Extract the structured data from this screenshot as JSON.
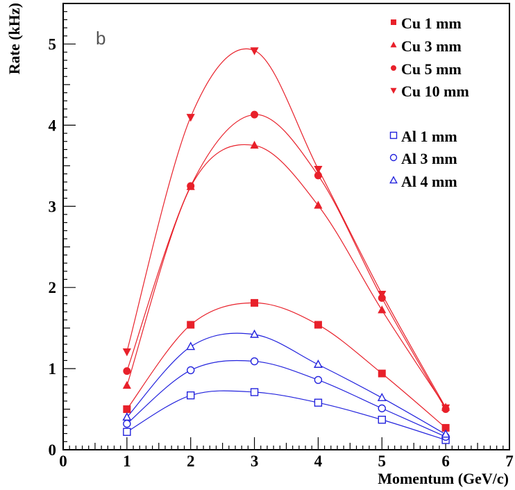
{
  "chart_data": {
    "type": "line",
    "panel_label": "b",
    "xlabel": "Momentum (GeV/c)",
    "ylabel": "Rate (kHz)",
    "xlim": [
      0,
      7
    ],
    "ylim": [
      0,
      5.5
    ],
    "x_ticks": [
      "0",
      "1",
      "2",
      "3",
      "4",
      "5",
      "6",
      "7"
    ],
    "y_ticks": [
      "0",
      "1",
      "2",
      "3",
      "4",
      "5"
    ],
    "x": [
      1,
      2,
      3,
      4,
      5,
      6
    ],
    "grid": false,
    "legend_position": "top-right",
    "series": [
      {
        "name": "Cu 1 mm",
        "marker": "filled-square",
        "color": "#e8202a",
        "values": [
          0.5,
          1.54,
          1.81,
          1.54,
          0.94,
          0.27
        ]
      },
      {
        "name": "Cu 3 mm",
        "marker": "filled-triangle-up",
        "color": "#e8202a",
        "values": [
          0.79,
          3.24,
          3.75,
          3.01,
          1.72,
          0.52
        ]
      },
      {
        "name": "Cu 5 mm",
        "marker": "filled-circle",
        "color": "#e8202a",
        "values": [
          0.97,
          3.25,
          4.13,
          3.38,
          1.87,
          0.5
        ]
      },
      {
        "name": "Cu 10 mm",
        "marker": "filled-triangle-down",
        "color": "#e8202a",
        "values": [
          1.21,
          4.1,
          4.92,
          3.46,
          1.92,
          0.52
        ]
      },
      {
        "name": "Al 1 mm",
        "marker": "open-square",
        "color": "#2222dd",
        "values": [
          0.22,
          0.67,
          0.71,
          0.58,
          0.37,
          0.12
        ]
      },
      {
        "name": "Al 3 mm",
        "marker": "open-circle",
        "color": "#2222dd",
        "values": [
          0.32,
          0.98,
          1.09,
          0.86,
          0.51,
          0.16
        ]
      },
      {
        "name": "Al 4 mm",
        "marker": "open-triangle-up",
        "color": "#2222dd",
        "values": [
          0.4,
          1.27,
          1.42,
          1.05,
          0.64,
          0.19
        ]
      }
    ]
  }
}
